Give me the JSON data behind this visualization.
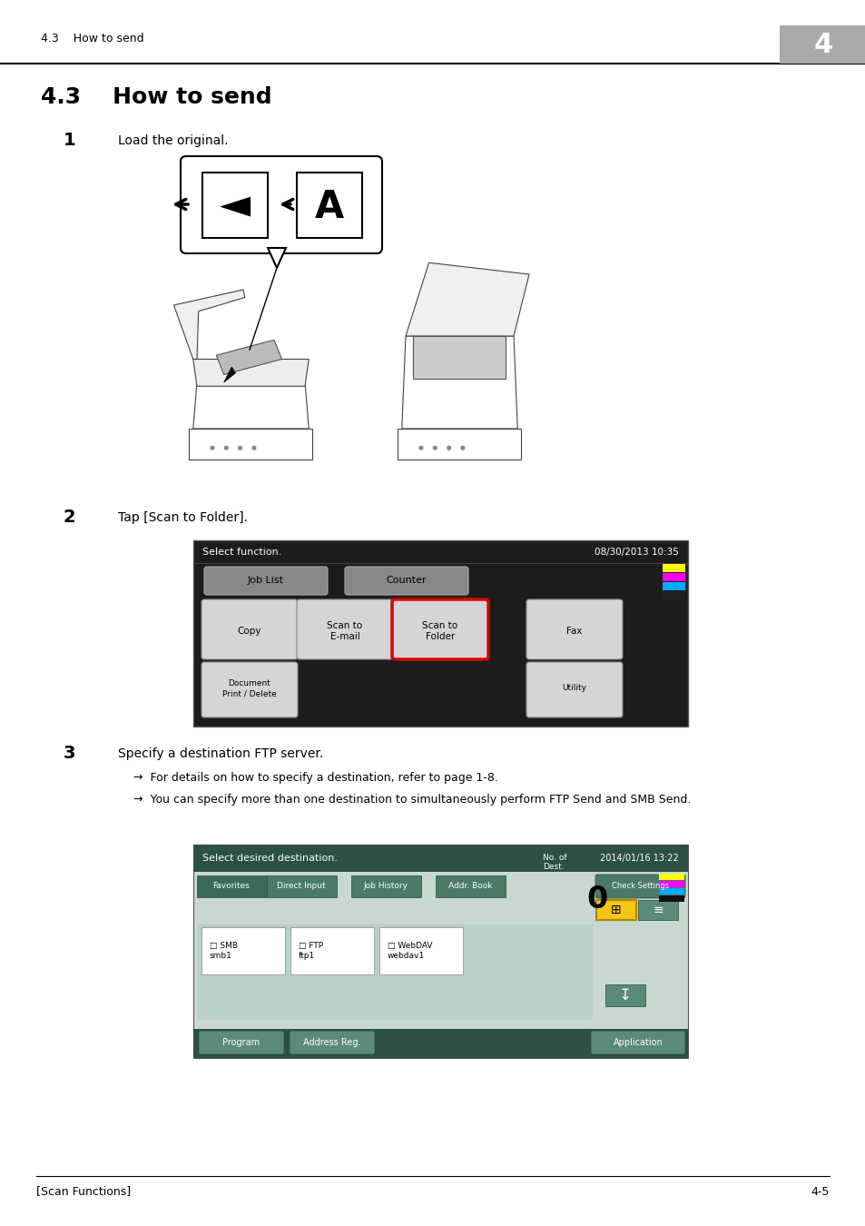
{
  "page_width": 9.54,
  "page_height": 13.5,
  "dpi": 100,
  "bg_color": "#ffffff",
  "header_text": "4.3    How to send",
  "header_chapter": "4",
  "header_chapter_bg": "#999999",
  "section_title": "4.3    How to send",
  "step1_num": "1",
  "step1_text": "Load the original.",
  "step2_num": "2",
  "step2_text": "Tap [Scan to Folder].",
  "step3_num": "3",
  "step3_text": "Specify a destination FTP server.",
  "arrow1_text": "→  For details on how to specify a destination, refer to page 1-8.",
  "arrow2_text": "→  You can specify more than one destination to simultaneously perform FTP Send and SMB Send.",
  "footer_left": "[Scan Functions]",
  "footer_right": "4-5",
  "screen2_title": "Select function.",
  "screen2_datetime": "08/30/2013 10:35",
  "screen3_title": "Select desired destination.",
  "screen3_label1": "No. of",
  "screen3_label2": "Dest.",
  "screen3_datetime": "2014/01/16 13:22",
  "screen3_zero": "0"
}
